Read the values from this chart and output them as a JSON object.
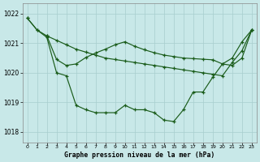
{
  "bg_color": "#c8e8e8",
  "line_color": "#1a5c1a",
  "grid_color": "#a8cece",
  "ylim": [
    1017.65,
    1022.35
  ],
  "xlim": [
    -0.5,
    23.5
  ],
  "yticks": [
    1018,
    1019,
    1020,
    1021,
    1022
  ],
  "xlabel": "Graphe pression niveau de la mer (hPa)",
  "s1_x": [
    0,
    1,
    2,
    3,
    4,
    5,
    6,
    7,
    8,
    9,
    10,
    11,
    12,
    13,
    14,
    15,
    16,
    17,
    18,
    19,
    20,
    21,
    22,
    23
  ],
  "s1_y": [
    1021.85,
    1021.45,
    1021.25,
    1019.9,
    1019.9,
    1018.95,
    1018.75,
    1018.65,
    1018.65,
    1018.65,
    1018.9,
    1018.75,
    1018.75,
    1018.65,
    1018.4,
    1018.35,
    1018.75,
    1019.3,
    1019.3,
    1019.8,
    1020.3,
    1020.5,
    1021.05,
    1021.45
  ],
  "s2_x": [
    0,
    1,
    2,
    3,
    4,
    5,
    6,
    7,
    8,
    9,
    10,
    11,
    12,
    13,
    14,
    15,
    16,
    17,
    18,
    19,
    20,
    21,
    22,
    23
  ],
  "s2_y": [
    1021.85,
    1021.45,
    1021.25,
    1021.1,
    1020.95,
    1020.8,
    1020.7,
    1020.6,
    1020.5,
    1020.45,
    1020.4,
    1020.35,
    1020.3,
    1020.25,
    1020.2,
    1020.15,
    1020.1,
    1020.05,
    1020.0,
    1019.95,
    1019.9,
    1020.35,
    1020.75,
    1021.45
  ],
  "s3_x": [
    2,
    3,
    4,
    5,
    6,
    7,
    8,
    9,
    10,
    11,
    12,
    13,
    14,
    15,
    16,
    17,
    18,
    19,
    20,
    21,
    22,
    23
  ],
  "s3_y": [
    1021.25,
    1020.45,
    1020.25,
    1020.3,
    1020.5,
    1020.65,
    1020.78,
    1020.9,
    1021.05,
    1020.9,
    1020.8,
    1020.7,
    1020.62,
    1020.55,
    1020.5,
    1020.48,
    1020.46,
    1020.44,
    1020.3,
    1020.25,
    1020.5,
    1021.45
  ]
}
